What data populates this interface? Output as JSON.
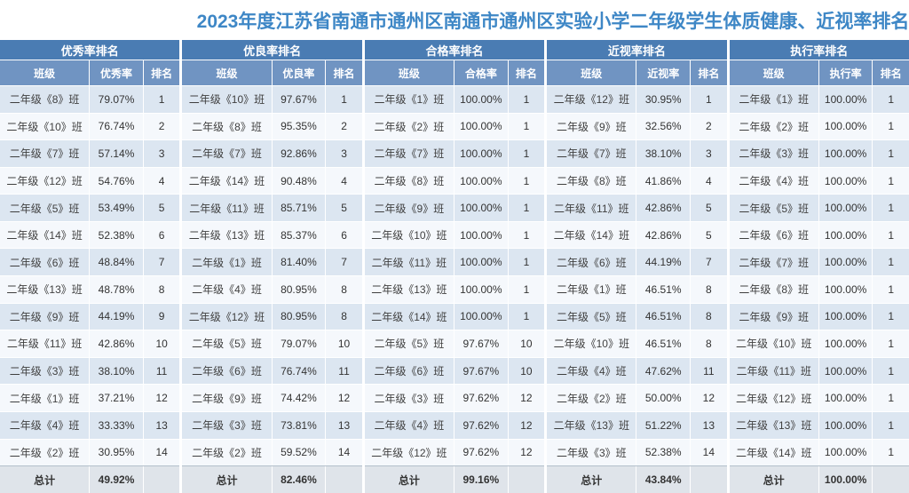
{
  "page_title": "2023年度江苏省南通市通州区南通市通州区实验小学二年级学生体质健康、近视率排名",
  "colors": {
    "title_text": "#3e87c6",
    "table_title_bg": "#4a7cb3",
    "column_header_bg": "#7094c2",
    "row_odd_bg": "#dce6f1",
    "row_even_bg": "#f5f8fc",
    "total_row_bg": "#dfe4ea"
  },
  "total_label": "总计",
  "chart_data": [
    {
      "type": "table",
      "title": "优秀率排名",
      "columns": [
        "班级",
        "优秀率",
        "排名"
      ],
      "rows": [
        [
          "二年级《8》班",
          "79.07%",
          "1"
        ],
        [
          "二年级《10》班",
          "76.74%",
          "2"
        ],
        [
          "二年级《7》班",
          "57.14%",
          "3"
        ],
        [
          "二年级《12》班",
          "54.76%",
          "4"
        ],
        [
          "二年级《5》班",
          "53.49%",
          "5"
        ],
        [
          "二年级《14》班",
          "52.38%",
          "6"
        ],
        [
          "二年级《6》班",
          "48.84%",
          "7"
        ],
        [
          "二年级《13》班",
          "48.78%",
          "8"
        ],
        [
          "二年级《9》班",
          "44.19%",
          "9"
        ],
        [
          "二年级《11》班",
          "42.86%",
          "10"
        ],
        [
          "二年级《3》班",
          "38.10%",
          "11"
        ],
        [
          "二年级《1》班",
          "37.21%",
          "12"
        ],
        [
          "二年级《4》班",
          "33.33%",
          "13"
        ],
        [
          "二年级《2》班",
          "30.95%",
          "14"
        ]
      ],
      "total": [
        "总计",
        "49.92%",
        ""
      ]
    },
    {
      "type": "table",
      "title": "优良率排名",
      "columns": [
        "班级",
        "优良率",
        "排名"
      ],
      "rows": [
        [
          "二年级《10》班",
          "97.67%",
          "1"
        ],
        [
          "二年级《8》班",
          "95.35%",
          "2"
        ],
        [
          "二年级《7》班",
          "92.86%",
          "3"
        ],
        [
          "二年级《14》班",
          "90.48%",
          "4"
        ],
        [
          "二年级《11》班",
          "85.71%",
          "5"
        ],
        [
          "二年级《13》班",
          "85.37%",
          "6"
        ],
        [
          "二年级《1》班",
          "81.40%",
          "7"
        ],
        [
          "二年级《4》班",
          "80.95%",
          "8"
        ],
        [
          "二年级《12》班",
          "80.95%",
          "8"
        ],
        [
          "二年级《5》班",
          "79.07%",
          "10"
        ],
        [
          "二年级《6》班",
          "76.74%",
          "11"
        ],
        [
          "二年级《9》班",
          "74.42%",
          "12"
        ],
        [
          "二年级《3》班",
          "73.81%",
          "13"
        ],
        [
          "二年级《2》班",
          "59.52%",
          "14"
        ]
      ],
      "total": [
        "总计",
        "82.46%",
        ""
      ]
    },
    {
      "type": "table",
      "title": "合格率排名",
      "columns": [
        "班级",
        "合格率",
        "排名"
      ],
      "rows": [
        [
          "二年级《1》班",
          "100.00%",
          "1"
        ],
        [
          "二年级《2》班",
          "100.00%",
          "1"
        ],
        [
          "二年级《7》班",
          "100.00%",
          "1"
        ],
        [
          "二年级《8》班",
          "100.00%",
          "1"
        ],
        [
          "二年级《9》班",
          "100.00%",
          "1"
        ],
        [
          "二年级《10》班",
          "100.00%",
          "1"
        ],
        [
          "二年级《11》班",
          "100.00%",
          "1"
        ],
        [
          "二年级《13》班",
          "100.00%",
          "1"
        ],
        [
          "二年级《14》班",
          "100.00%",
          "1"
        ],
        [
          "二年级《5》班",
          "97.67%",
          "10"
        ],
        [
          "二年级《6》班",
          "97.67%",
          "10"
        ],
        [
          "二年级《3》班",
          "97.62%",
          "12"
        ],
        [
          "二年级《4》班",
          "97.62%",
          "12"
        ],
        [
          "二年级《12》班",
          "97.62%",
          "12"
        ]
      ],
      "total": [
        "总计",
        "99.16%",
        ""
      ]
    },
    {
      "type": "table",
      "title": "近视率排名",
      "columns": [
        "班级",
        "近视率",
        "排名"
      ],
      "rows": [
        [
          "二年级《12》班",
          "30.95%",
          "1"
        ],
        [
          "二年级《9》班",
          "32.56%",
          "2"
        ],
        [
          "二年级《7》班",
          "38.10%",
          "3"
        ],
        [
          "二年级《8》班",
          "41.86%",
          "4"
        ],
        [
          "二年级《11》班",
          "42.86%",
          "5"
        ],
        [
          "二年级《14》班",
          "42.86%",
          "5"
        ],
        [
          "二年级《6》班",
          "44.19%",
          "7"
        ],
        [
          "二年级《1》班",
          "46.51%",
          "8"
        ],
        [
          "二年级《5》班",
          "46.51%",
          "8"
        ],
        [
          "二年级《10》班",
          "46.51%",
          "8"
        ],
        [
          "二年级《4》班",
          "47.62%",
          "11"
        ],
        [
          "二年级《2》班",
          "50.00%",
          "12"
        ],
        [
          "二年级《13》班",
          "51.22%",
          "13"
        ],
        [
          "二年级《3》班",
          "52.38%",
          "14"
        ]
      ],
      "total": [
        "总计",
        "43.84%",
        ""
      ]
    },
    {
      "type": "table",
      "title": "执行率排名",
      "columns": [
        "班级",
        "执行率",
        "排名"
      ],
      "rows": [
        [
          "二年级《1》班",
          "100.00%",
          "1"
        ],
        [
          "二年级《2》班",
          "100.00%",
          "1"
        ],
        [
          "二年级《3》班",
          "100.00%",
          "1"
        ],
        [
          "二年级《4》班",
          "100.00%",
          "1"
        ],
        [
          "二年级《5》班",
          "100.00%",
          "1"
        ],
        [
          "二年级《6》班",
          "100.00%",
          "1"
        ],
        [
          "二年级《7》班",
          "100.00%",
          "1"
        ],
        [
          "二年级《8》班",
          "100.00%",
          "1"
        ],
        [
          "二年级《9》班",
          "100.00%",
          "1"
        ],
        [
          "二年级《10》班",
          "100.00%",
          "1"
        ],
        [
          "二年级《11》班",
          "100.00%",
          "1"
        ],
        [
          "二年级《12》班",
          "100.00%",
          "1"
        ],
        [
          "二年级《13》班",
          "100.00%",
          "1"
        ],
        [
          "二年级《14》班",
          "100.00%",
          "1"
        ]
      ],
      "total": [
        "总计",
        "100.00%",
        ""
      ]
    }
  ]
}
